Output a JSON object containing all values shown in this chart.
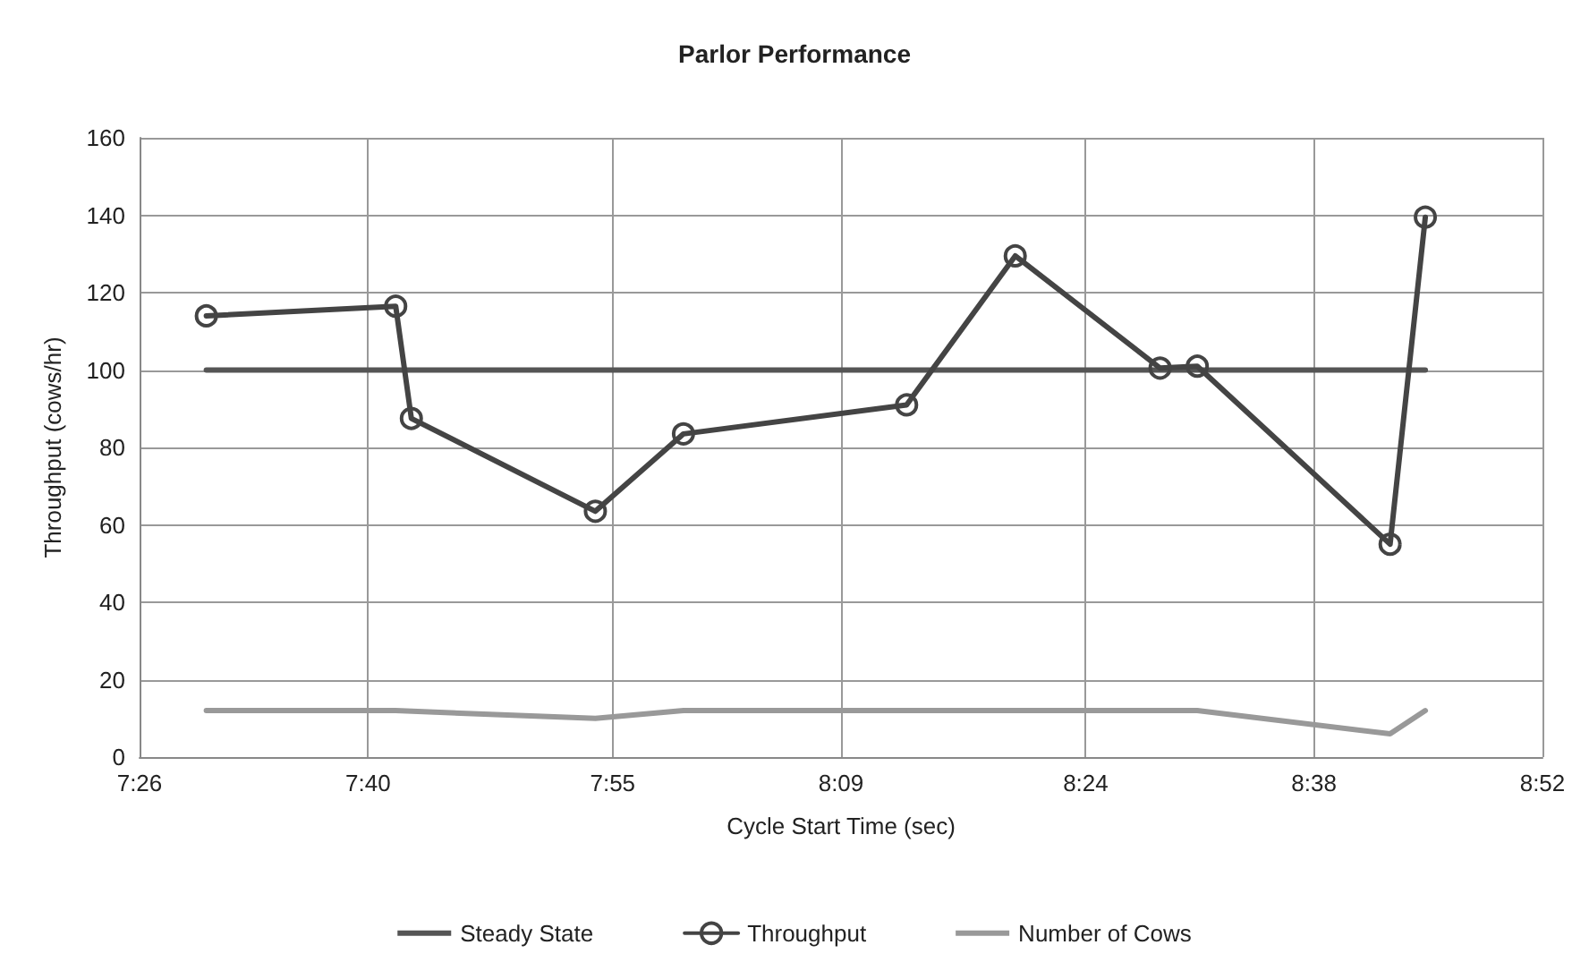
{
  "chart_data": {
    "type": "line",
    "title": "Parlor Performance",
    "xlabel": "Cycle Start Time (sec)",
    "ylabel": "Throughput (cows/hr)",
    "xlim": [
      7.4333,
      8.8667
    ],
    "xticks": [
      {
        "value": 7.4333,
        "label": "7:26"
      },
      {
        "value": 7.6667,
        "label": "7:40"
      },
      {
        "value": 7.9167,
        "label": "7:55"
      },
      {
        "value": 8.15,
        "label": "8:09"
      },
      {
        "value": 8.4,
        "label": "8:24"
      },
      {
        "value": 8.6333,
        "label": "8:38"
      },
      {
        "value": 8.8667,
        "label": "8:52"
      }
    ],
    "ylim": [
      0,
      160
    ],
    "yticks": [
      0,
      20,
      40,
      60,
      80,
      100,
      120,
      140,
      160
    ],
    "grid": true,
    "legend": "bottom",
    "series": [
      {
        "name": "Steady State",
        "color": "#555555",
        "marker": "none",
        "x": [
          7.5015,
          8.747
        ],
        "values": [
          100,
          100
        ]
      },
      {
        "name": "Throughput",
        "color": "#444444",
        "marker": "circle",
        "x": [
          7.5015,
          7.695,
          7.711,
          7.899,
          7.989,
          8.217,
          8.328,
          8.476,
          8.514,
          8.711,
          8.747
        ],
        "values": [
          114,
          116.5,
          87.5,
          63.5,
          83.5,
          91,
          129.5,
          100.5,
          101,
          55,
          139.5
        ]
      },
      {
        "name": "Number of Cows",
        "color": "#999999",
        "marker": "none",
        "x": [
          7.5015,
          7.695,
          7.899,
          7.989,
          8.217,
          8.328,
          8.476,
          8.514,
          8.711,
          8.747
        ],
        "values": [
          12,
          12,
          10,
          12,
          12,
          12,
          12,
          12,
          6,
          12
        ]
      }
    ]
  }
}
